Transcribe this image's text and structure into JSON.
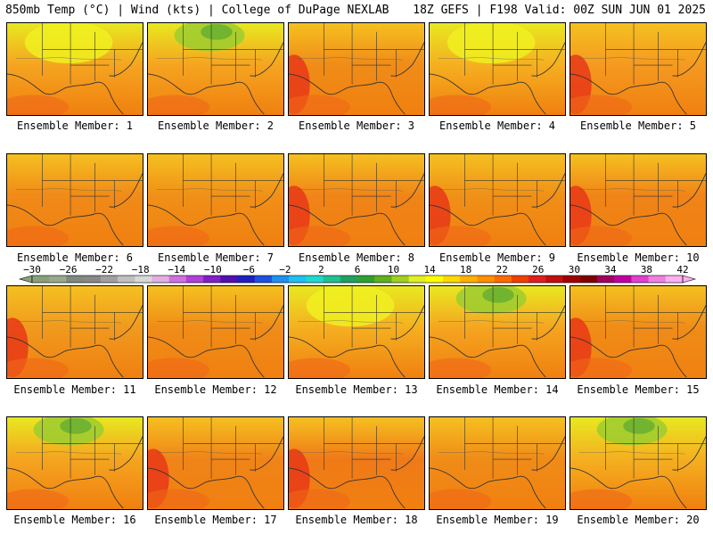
{
  "header": {
    "left": "850mb Temp (°C) | Wind (kts) | College of DuPage NEXLAB",
    "right": "18Z GEFS | F198 Valid: 00Z SUN JUN 01 2025"
  },
  "colorbar": {
    "labels": [
      "-30",
      "-26",
      "-22",
      "-18",
      "-14",
      "-10",
      "-6",
      "-2",
      "2",
      "6",
      "10",
      "14",
      "18",
      "22",
      "26",
      "30",
      "34",
      "38",
      "42"
    ],
    "colors": [
      "#8aa07a",
      "#9aa88e",
      "#7e8a7e",
      "#888888",
      "#a0a0a0",
      "#c0c0c0",
      "#d8d8d8",
      "#e0b0e0",
      "#d070e0",
      "#b040d8",
      "#8020c8",
      "#5010b0",
      "#2020c0",
      "#2050e0",
      "#2090f0",
      "#20c0f0",
      "#20d8d0",
      "#20c090",
      "#20a060",
      "#30a030",
      "#60b020",
      "#a0d020",
      "#e0f020",
      "#ffff00",
      "#ffd800",
      "#ffb000",
      "#ff9000",
      "#ff6a00",
      "#f04000",
      "#e02020",
      "#c01010",
      "#a00000",
      "#800000",
      "#a00060",
      "#c000a0",
      "#e040d0",
      "#f080e0",
      "#ffb0f0"
    ]
  },
  "members": [
    {
      "label": "Ensemble Member: 1",
      "base": "#f5a520",
      "tone": "north-yellow"
    },
    {
      "label": "Ensemble Member: 2",
      "base": "#f5a520",
      "tone": "north-green"
    },
    {
      "label": "Ensemble Member: 3",
      "base": "#f08c18",
      "tone": "west-red"
    },
    {
      "label": "Ensemble Member: 4",
      "base": "#f5b020",
      "tone": "north-yellow"
    },
    {
      "label": "Ensemble Member: 5",
      "base": "#f59a20",
      "tone": "west-red"
    },
    {
      "label": "Ensemble Member: 6",
      "base": "#f08a18",
      "tone": "warm"
    },
    {
      "label": "Ensemble Member: 7",
      "base": "#f09018",
      "tone": "warm"
    },
    {
      "label": "Ensemble Member: 8",
      "base": "#f08418",
      "tone": "west-red"
    },
    {
      "label": "Ensemble Member: 9",
      "base": "#f09018",
      "tone": "west-red"
    },
    {
      "label": "Ensemble Member: 10",
      "base": "#f08418",
      "tone": "west-red"
    },
    {
      "label": "Ensemble Member: 11",
      "base": "#f09a1e",
      "tone": "west-red"
    },
    {
      "label": "Ensemble Member: 12",
      "base": "#f08c18",
      "tone": "warm"
    },
    {
      "label": "Ensemble Member: 13",
      "base": "#f5b020",
      "tone": "north-yellow"
    },
    {
      "label": "Ensemble Member: 14",
      "base": "#f5a520",
      "tone": "north-green"
    },
    {
      "label": "Ensemble Member: 15",
      "base": "#f08c18",
      "tone": "west-red"
    },
    {
      "label": "Ensemble Member: 16",
      "base": "#f5a520",
      "tone": "north-green"
    },
    {
      "label": "Ensemble Member: 17",
      "base": "#f08418",
      "tone": "west-red"
    },
    {
      "label": "Ensemble Member: 18",
      "base": "#f07a18",
      "tone": "west-red"
    },
    {
      "label": "Ensemble Member: 19",
      "base": "#f08c18",
      "tone": "warm"
    },
    {
      "label": "Ensemble Member: 20",
      "base": "#f5b020",
      "tone": "north-green"
    }
  ]
}
